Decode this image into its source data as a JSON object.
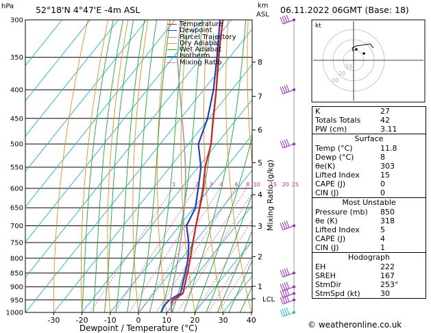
{
  "header": {
    "hpa": "hPa",
    "location": "52°18'N  4°47'E  -4m  ASL",
    "km": "km",
    "asl": "ASL",
    "datetime": "06.11.2022  06GMT  (Base: 18)"
  },
  "legend": [
    {
      "label": "Temperature",
      "color": "#e0181c"
    },
    {
      "label": "Dewpoint",
      "color": "#1a3fd0"
    },
    {
      "label": "Parcel Trajectory",
      "color": "#999999"
    },
    {
      "label": "Dry Adiabat",
      "color": "#f08a0c"
    },
    {
      "label": "Wet Adiabat",
      "color": "#16a82a"
    },
    {
      "label": "Isotherm",
      "color": "#1ab0e6"
    },
    {
      "label": "Mixing Ratio",
      "color": "#e0219c"
    }
  ],
  "chart_data": {
    "type": "line",
    "title": "",
    "xlabel": "Dewpoint / Temperature (°C)",
    "ylabel": "hPa",
    "y2label": "Mixing Ratio (g/kg)",
    "xlim": [
      -35,
      40
    ],
    "ylim": [
      1000,
      300
    ],
    "x_ticks": [
      -30,
      -20,
      -10,
      0,
      10,
      20,
      30,
      40
    ],
    "y_ticks": [
      300,
      350,
      400,
      450,
      500,
      550,
      600,
      650,
      700,
      750,
      800,
      850,
      900,
      950,
      1000
    ],
    "km_ticks": [
      {
        "km": 1,
        "p": 898
      },
      {
        "km": 2,
        "p": 795
      },
      {
        "km": 3,
        "p": 701
      },
      {
        "km": 4,
        "p": 616
      },
      {
        "km": 5,
        "p": 540
      },
      {
        "km": 6,
        "p": 472
      },
      {
        "km": 7,
        "p": 411
      },
      {
        "km": 8,
        "p": 357
      }
    ],
    "lcl": {
      "label": "LCL",
      "p": 945
    },
    "mixing_ratio_labels": [
      "1",
      "2",
      "3",
      "4",
      "6",
      "8",
      "10",
      "15",
      "20",
      "25"
    ],
    "mixing_ratios": [
      1,
      2,
      3,
      4,
      6,
      8,
      10,
      15,
      20,
      25
    ],
    "series": [
      {
        "name": "Temperature",
        "color": "#e0181c",
        "points": [
          [
            1000,
            11.8
          ],
          [
            970,
            9.5
          ],
          [
            950,
            8.7
          ],
          [
            925,
            10.4
          ],
          [
            900,
            9.0
          ],
          [
            875,
            7.6
          ],
          [
            850,
            6.2
          ],
          [
            800,
            3.0
          ],
          [
            750,
            -0.5
          ],
          [
            700,
            -4.2
          ],
          [
            650,
            -8.0
          ],
          [
            600,
            -12.3
          ],
          [
            550,
            -17.5
          ],
          [
            500,
            -22.0
          ],
          [
            450,
            -28.5
          ],
          [
            400,
            -35.5
          ],
          [
            350,
            -44.0
          ],
          [
            300,
            -53.0
          ]
        ]
      },
      {
        "name": "Dewpoint",
        "color": "#1a3fd0",
        "points": [
          [
            1000,
            8.0
          ],
          [
            970,
            7.2
          ],
          [
            950,
            7.4
          ],
          [
            925,
            9.5
          ],
          [
            900,
            8.2
          ],
          [
            875,
            6.8
          ],
          [
            850,
            5.5
          ],
          [
            800,
            2.2
          ],
          [
            750,
            -2.0
          ],
          [
            700,
            -7.5
          ],
          [
            650,
            -9.5
          ],
          [
            600,
            -14.0
          ],
          [
            550,
            -19.0
          ],
          [
            500,
            -26.5
          ],
          [
            450,
            -30.5
          ],
          [
            400,
            -36.5
          ],
          [
            350,
            -44.5
          ],
          [
            300,
            -54.0
          ]
        ]
      },
      {
        "name": "Parcel Trajectory",
        "color": "#999999",
        "points": [
          [
            1000,
            11.8
          ],
          [
            945,
            7.5
          ],
          [
            900,
            4.8
          ],
          [
            850,
            1.9
          ],
          [
            800,
            -1.3
          ],
          [
            750,
            -4.9
          ],
          [
            700,
            -8.9
          ],
          [
            650,
            -13.4
          ],
          [
            600,
            -18.5
          ],
          [
            550,
            -24.5
          ],
          [
            500,
            -31.5
          ],
          [
            450,
            -39.5
          ],
          [
            400,
            -48.5
          ],
          [
            350,
            -58.5
          ],
          [
            300,
            -68.0
          ]
        ]
      }
    ],
    "wind_barb_levels": [
      300,
      400,
      500,
      700,
      850,
      900,
      925,
      950,
      1000
    ]
  },
  "hodograph": {
    "label": "kt",
    "rings": [
      "10",
      "20",
      "30"
    ]
  },
  "indices": {
    "top": [
      {
        "label": "K",
        "value": "27"
      },
      {
        "label": "Totals Totals",
        "value": "42"
      },
      {
        "label": "PW (cm)",
        "value": "3.11"
      }
    ],
    "surface": {
      "title": "Surface",
      "rows": [
        {
          "label": "Temp (°C)",
          "value": "11.8"
        },
        {
          "label": "Dewp (°C)",
          "value": "8"
        },
        {
          "label": "θe(K)",
          "value": "303"
        },
        {
          "label": "Lifted Index",
          "value": "15"
        },
        {
          "label": "CAPE (J)",
          "value": "0"
        },
        {
          "label": "CIN (J)",
          "value": "0"
        }
      ]
    },
    "unstable": {
      "title": "Most Unstable",
      "rows": [
        {
          "label": "Pressure (mb)",
          "value": "850"
        },
        {
          "label": "θe (K)",
          "value": "318"
        },
        {
          "label": "Lifted Index",
          "value": "5"
        },
        {
          "label": "CAPE (J)",
          "value": "4"
        },
        {
          "label": "CIN (J)",
          "value": "1"
        }
      ]
    },
    "hodo": {
      "title": "Hodograph",
      "rows": [
        {
          "label": "EH",
          "value": "222"
        },
        {
          "label": "SREH",
          "value": "167"
        },
        {
          "label": "StmDir",
          "value": "253°"
        },
        {
          "label": "StmSpd (kt)",
          "value": "30"
        }
      ]
    }
  },
  "copyright": "© weatheronline.co.uk"
}
